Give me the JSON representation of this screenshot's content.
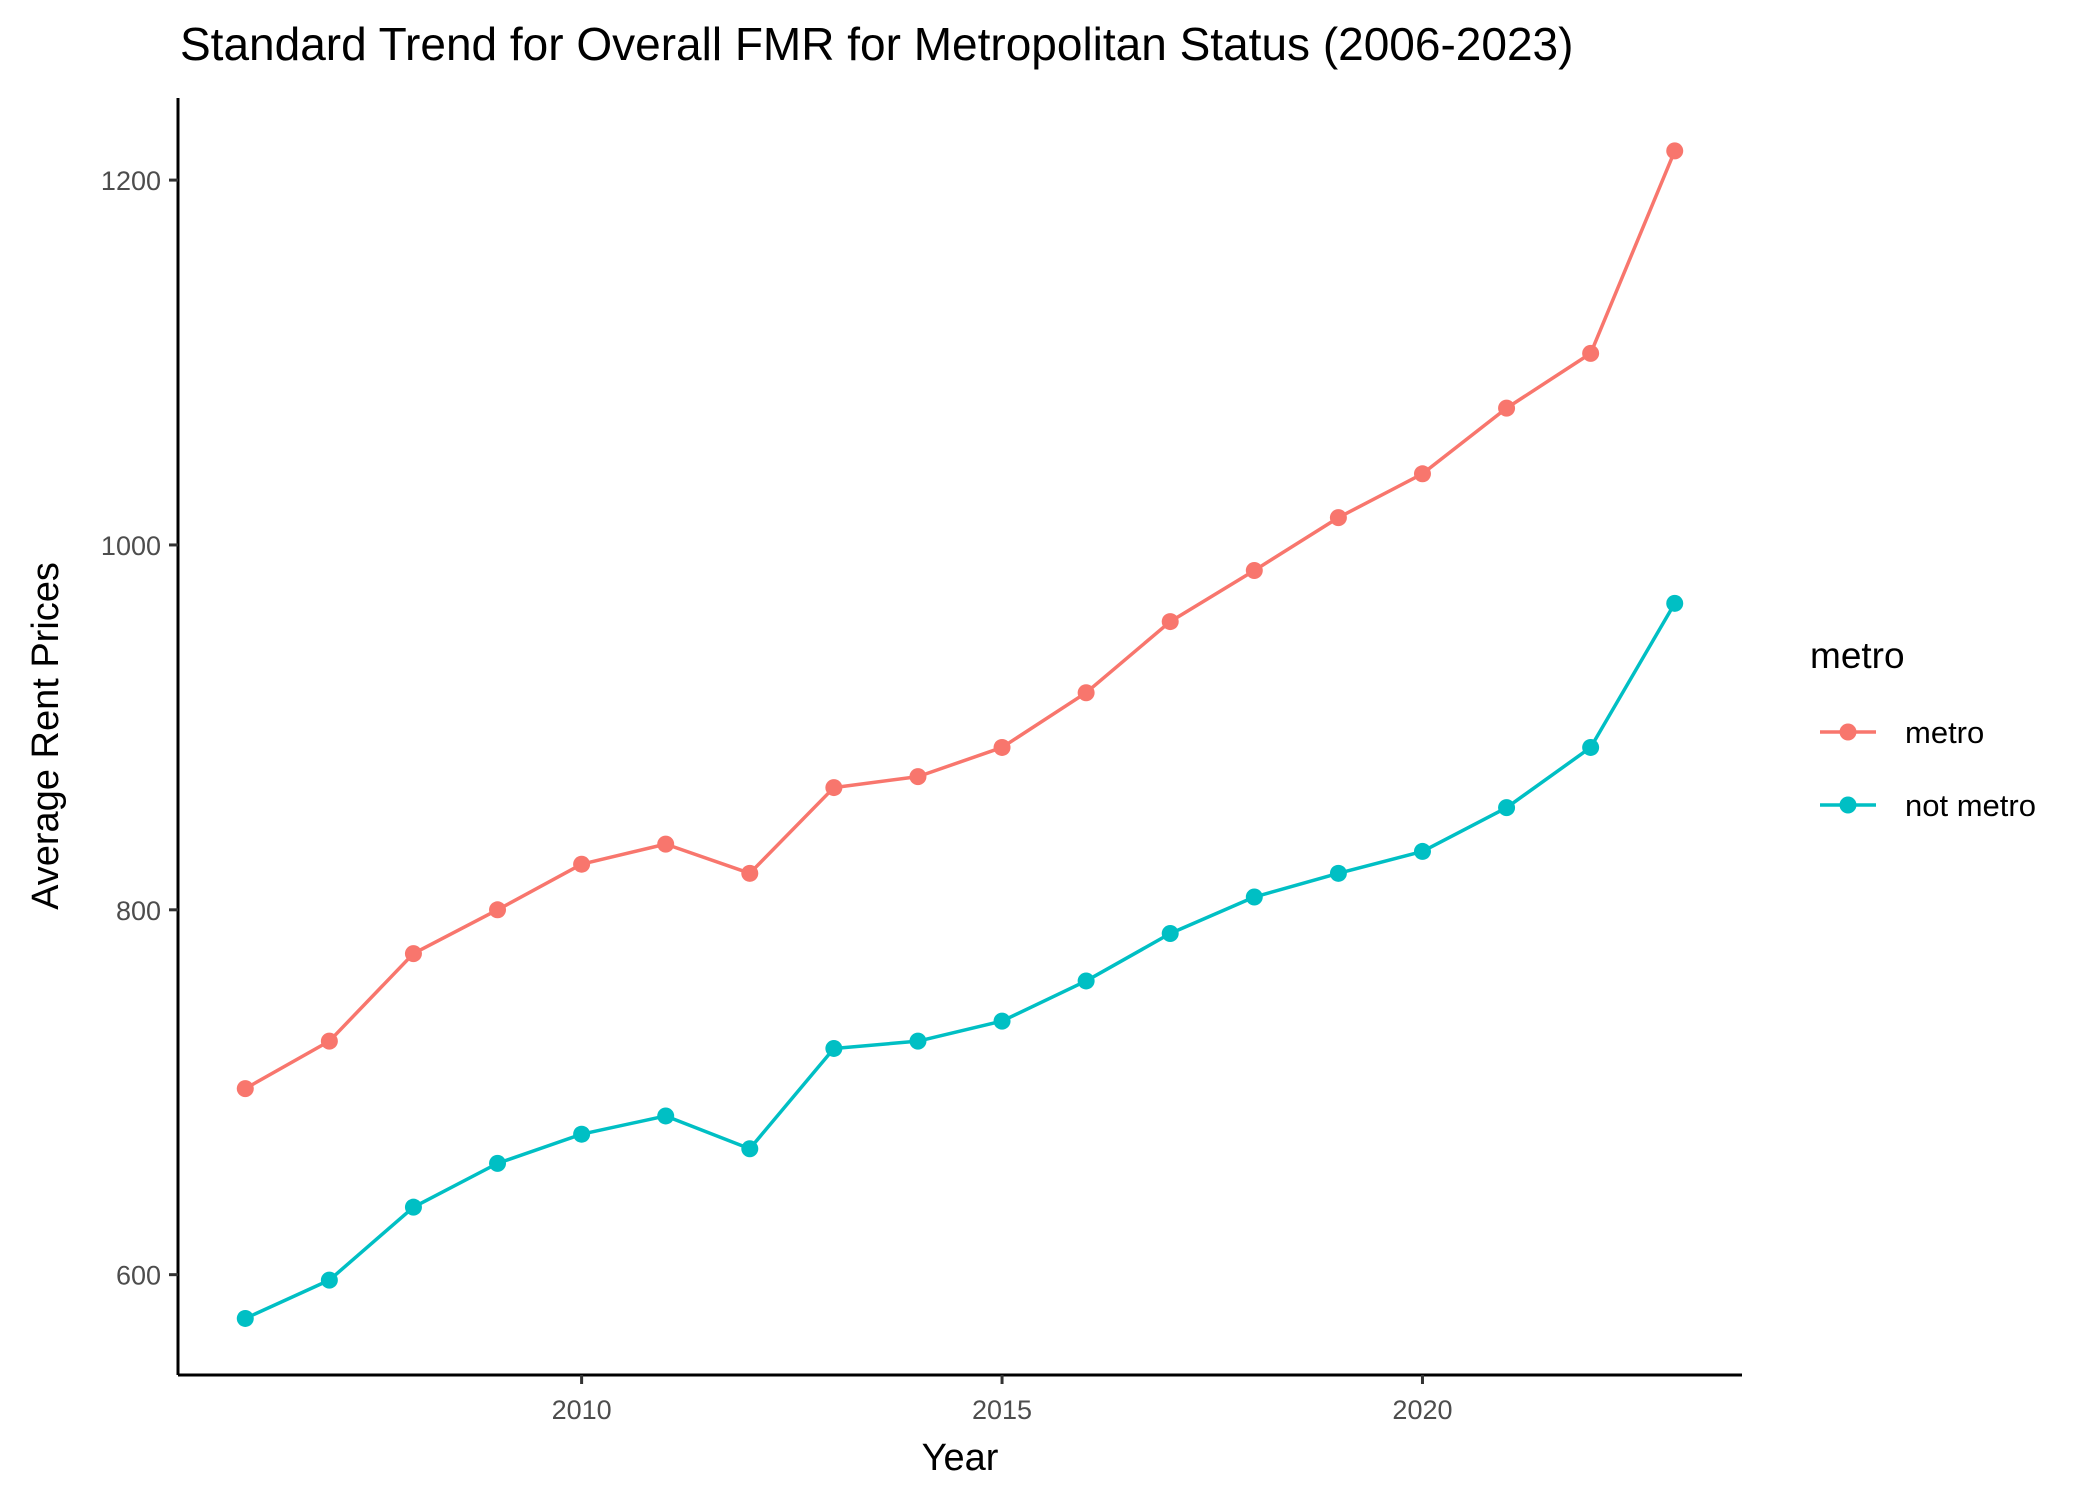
{
  "chart_data": {
    "type": "line",
    "title": "Standard Trend for Overall FMR for Metropolitan Status (2006-2023)",
    "xlabel": "Year",
    "ylabel": "Average Rent Prices",
    "xlim": [
      2005.2,
      2023.8
    ],
    "ylim": [
      545,
      1245
    ],
    "x_ticks": [
      2010,
      2015,
      2020
    ],
    "y_ticks": [
      600,
      800,
      1000,
      1200
    ],
    "grid": false,
    "legend": {
      "title": "metro",
      "position": "right"
    },
    "x": [
      2006,
      2007,
      2008,
      2009,
      2010,
      2011,
      2012,
      2013,
      2014,
      2015,
      2016,
      2017,
      2018,
      2019,
      2020,
      2021,
      2022,
      2023
    ],
    "series": [
      {
        "name": "metro",
        "color": "#F8766D",
        "values": [
          702,
          728,
          776,
          800,
          825,
          836,
          820,
          867,
          873,
          889,
          919,
          958,
          986,
          1015,
          1039,
          1075,
          1105,
          1216
        ]
      },
      {
        "name": "not metro",
        "color": "#00BFC4",
        "values": [
          576,
          597,
          637,
          661,
          677,
          687,
          669,
          724,
          728,
          739,
          761,
          787,
          807,
          820,
          832,
          856,
          889,
          968
        ]
      }
    ]
  }
}
